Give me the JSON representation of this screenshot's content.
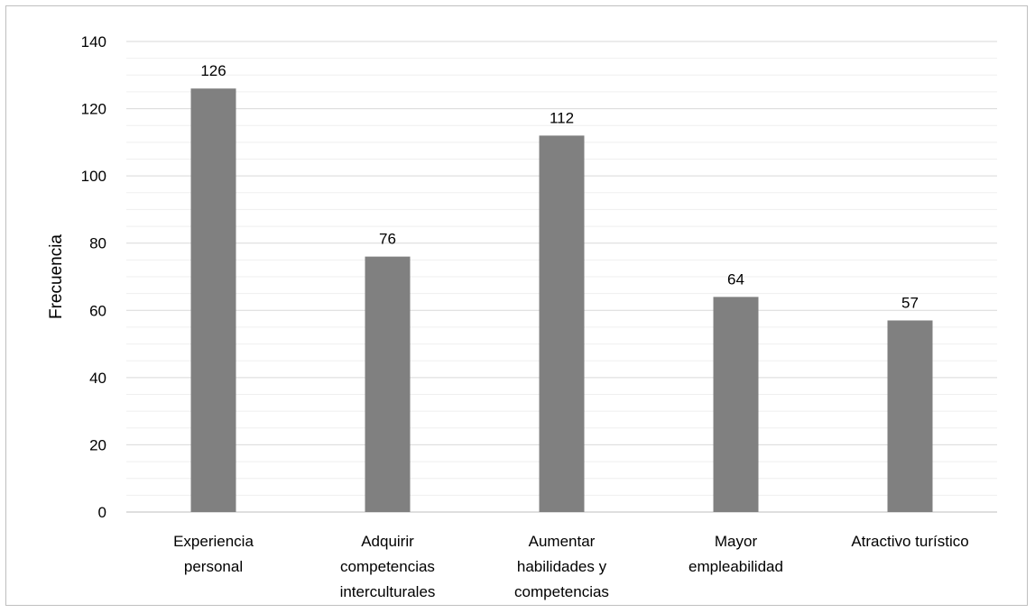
{
  "chart_data": {
    "type": "bar",
    "title": "",
    "xlabel": "",
    "ylabel": "Frecuencia",
    "categories": [
      [
        "Experiencia",
        "personal"
      ],
      [
        "Adquirir",
        "competencias",
        "interculturales"
      ],
      [
        "Aumentar",
        "habilidades y",
        "competencias"
      ],
      [
        "Mayor",
        "empleabilidad"
      ],
      [
        "Atractivo turístico"
      ]
    ],
    "values": [
      126,
      76,
      112,
      64,
      57
    ],
    "ylim": [
      0,
      140
    ],
    "yticks": [
      0,
      20,
      40,
      60,
      80,
      100,
      120,
      140
    ],
    "grid": true,
    "legend": "none",
    "data_labels": true
  },
  "colors": {
    "bar": "#808080",
    "major_grid": "#d9d9d9",
    "minor_grid": "#efefef",
    "axis": "#bfbfbf"
  }
}
